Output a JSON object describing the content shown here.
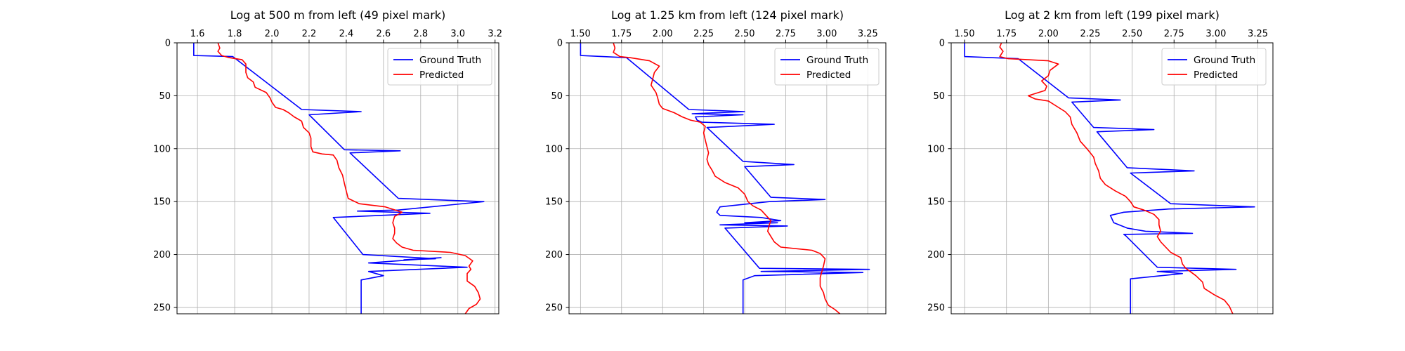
{
  "chart_data": [
    {
      "type": "line",
      "title": "Log at 500 m from left (49 pixel mark)",
      "xlim": [
        1.49,
        3.22
      ],
      "ylim": [
        256,
        0
      ],
      "x_ticks": [
        1.6,
        1.8,
        2.0,
        2.2,
        2.4,
        2.6,
        2.8,
        3.0,
        3.2
      ],
      "x_tick_labels": [
        "1.6",
        "1.8",
        "2.0",
        "2.2",
        "2.4",
        "2.6",
        "2.8",
        "3.0",
        "3.2"
      ],
      "y_ticks": [
        0,
        50,
        100,
        150,
        200,
        250
      ],
      "y_tick_labels": [
        "0",
        "50",
        "100",
        "150",
        "200",
        "250"
      ],
      "grid": true,
      "legend_position": "top-right",
      "series": [
        {
          "name": "Ground Truth",
          "color": "#0000ff",
          "points": [
            [
              1.58,
              0
            ],
            [
              1.58,
              12
            ],
            [
              1.79,
              13
            ],
            [
              2.16,
              63
            ],
            [
              2.48,
              65
            ],
            [
              2.2,
              68
            ],
            [
              2.39,
              101
            ],
            [
              2.69,
              102
            ],
            [
              2.42,
              104
            ],
            [
              2.68,
              147
            ],
            [
              3.14,
              150
            ],
            [
              2.68,
              158
            ],
            [
              2.46,
              159
            ],
            [
              2.85,
              161
            ],
            [
              2.33,
              165
            ],
            [
              2.49,
              200
            ],
            [
              2.88,
              204
            ],
            [
              2.71,
              205
            ],
            [
              2.91,
              203
            ],
            [
              2.52,
              208
            ],
            [
              3.05,
              212
            ],
            [
              2.52,
              216
            ],
            [
              2.6,
              220
            ],
            [
              2.48,
              224
            ],
            [
              2.48,
              256
            ]
          ]
        },
        {
          "name": "Predicted",
          "color": "#ff0000",
          "points": [
            [
              1.71,
              0
            ],
            [
              1.72,
              5
            ],
            [
              1.71,
              8
            ],
            [
              1.73,
              12
            ],
            [
              1.77,
              14
            ],
            [
              1.84,
              16
            ],
            [
              1.86,
              20
            ],
            [
              1.86,
              28
            ],
            [
              1.87,
              33
            ],
            [
              1.9,
              37
            ],
            [
              1.91,
              42
            ],
            [
              1.97,
              47
            ],
            [
              1.99,
              52
            ],
            [
              2.0,
              56
            ],
            [
              2.02,
              61
            ],
            [
              2.06,
              63
            ],
            [
              2.09,
              66
            ],
            [
              2.12,
              70
            ],
            [
              2.16,
              74
            ],
            [
              2.17,
              80
            ],
            [
              2.2,
              85
            ],
            [
              2.21,
              90
            ],
            [
              2.21,
              98
            ],
            [
              2.22,
              103
            ],
            [
              2.27,
              105
            ],
            [
              2.33,
              106
            ],
            [
              2.35,
              111
            ],
            [
              2.36,
              118
            ],
            [
              2.38,
              125
            ],
            [
              2.39,
              133
            ],
            [
              2.4,
              140
            ],
            [
              2.41,
              147
            ],
            [
              2.47,
              152
            ],
            [
              2.61,
              155
            ],
            [
              2.7,
              160
            ],
            [
              2.66,
              164
            ],
            [
              2.65,
              170
            ],
            [
              2.66,
              175
            ],
            [
              2.66,
              180
            ],
            [
              2.65,
              185
            ],
            [
              2.67,
              189
            ],
            [
              2.7,
              193
            ],
            [
              2.76,
              196
            ],
            [
              2.96,
              198
            ],
            [
              3.04,
              201
            ],
            [
              3.08,
              206
            ],
            [
              3.06,
              211
            ],
            [
              3.07,
              214
            ],
            [
              3.05,
              218
            ],
            [
              3.05,
              225
            ],
            [
              3.09,
              230
            ],
            [
              3.11,
              236
            ],
            [
              3.12,
              242
            ],
            [
              3.1,
              247
            ],
            [
              3.06,
              251
            ],
            [
              3.04,
              256
            ]
          ]
        }
      ]
    },
    {
      "type": "line",
      "title": "Log at 1.25 km from left (124 pixel mark)",
      "xlim": [
        1.43,
        3.36
      ],
      "ylim": [
        256,
        0
      ],
      "x_ticks": [
        1.5,
        1.75,
        2.0,
        2.25,
        2.5,
        2.75,
        3.0,
        3.25
      ],
      "x_tick_labels": [
        "1.50",
        "1.75",
        "2.00",
        "2.25",
        "2.50",
        "2.75",
        "3.00",
        "3.25"
      ],
      "y_ticks": [
        0,
        50,
        100,
        150,
        200,
        250
      ],
      "y_tick_labels": [
        "0",
        "50",
        "100",
        "150",
        "200",
        "250"
      ],
      "grid": true,
      "legend_position": "top-right",
      "series": [
        {
          "name": "Ground Truth",
          "color": "#0000ff",
          "points": [
            [
              1.5,
              0
            ],
            [
              1.5,
              12
            ],
            [
              1.78,
              14
            ],
            [
              2.16,
              63
            ],
            [
              2.5,
              65
            ],
            [
              2.18,
              67
            ],
            [
              2.49,
              68
            ],
            [
              2.2,
              70
            ],
            [
              2.21,
              73
            ],
            [
              2.24,
              75
            ],
            [
              2.68,
              77
            ],
            [
              2.27,
              80
            ],
            [
              2.49,
              112
            ],
            [
              2.8,
              115
            ],
            [
              2.5,
              117
            ],
            [
              2.66,
              146
            ],
            [
              2.99,
              148
            ],
            [
              2.65,
              150
            ],
            [
              2.35,
              155
            ],
            [
              2.33,
              160
            ],
            [
              2.35,
              163
            ],
            [
              2.6,
              165
            ],
            [
              2.72,
              168
            ],
            [
              2.5,
              170
            ],
            [
              2.7,
              170
            ],
            [
              2.35,
              172
            ],
            [
              2.76,
              173
            ],
            [
              2.38,
              175
            ],
            [
              2.59,
              213
            ],
            [
              3.26,
              214
            ],
            [
              2.6,
              216
            ],
            [
              3.22,
              217
            ],
            [
              2.56,
              220
            ],
            [
              2.49,
              224
            ],
            [
              2.49,
              256
            ]
          ]
        },
        {
          "name": "Predicted",
          "color": "#ff0000",
          "points": [
            [
              1.7,
              0
            ],
            [
              1.71,
              5
            ],
            [
              1.7,
              9
            ],
            [
              1.74,
              13
            ],
            [
              1.8,
              14
            ],
            [
              1.92,
              17
            ],
            [
              1.98,
              22
            ],
            [
              1.95,
              28
            ],
            [
              1.94,
              34
            ],
            [
              1.93,
              40
            ],
            [
              1.96,
              47
            ],
            [
              1.97,
              52
            ],
            [
              1.98,
              58
            ],
            [
              2.0,
              62
            ],
            [
              2.07,
              66
            ],
            [
              2.12,
              70
            ],
            [
              2.17,
              73
            ],
            [
              2.23,
              75
            ],
            [
              2.26,
              79
            ],
            [
              2.25,
              85
            ],
            [
              2.26,
              92
            ],
            [
              2.27,
              98
            ],
            [
              2.28,
              104
            ],
            [
              2.27,
              110
            ],
            [
              2.28,
              115
            ],
            [
              2.3,
              120
            ],
            [
              2.32,
              126
            ],
            [
              2.38,
              132
            ],
            [
              2.46,
              137
            ],
            [
              2.5,
              143
            ],
            [
              2.52,
              150
            ],
            [
              2.55,
              154
            ],
            [
              2.6,
              158
            ],
            [
              2.63,
              163
            ],
            [
              2.66,
              168
            ],
            [
              2.65,
              172
            ],
            [
              2.64,
              178
            ],
            [
              2.66,
              183
            ],
            [
              2.68,
              188
            ],
            [
              2.72,
              193
            ],
            [
              2.91,
              196
            ],
            [
              2.96,
              199
            ],
            [
              2.99,
              204
            ],
            [
              2.98,
              211
            ],
            [
              2.97,
              216
            ],
            [
              2.96,
              222
            ],
            [
              2.96,
              230
            ],
            [
              2.98,
              236
            ],
            [
              2.99,
              242
            ],
            [
              3.01,
              248
            ],
            [
              3.05,
              252
            ],
            [
              3.08,
              256
            ]
          ]
        }
      ]
    },
    {
      "type": "line",
      "title": "Log at 2 km from left (199 pixel mark)",
      "xlim": [
        1.42,
        3.34
      ],
      "ylim": [
        256,
        0
      ],
      "x_ticks": [
        1.5,
        1.75,
        2.0,
        2.25,
        2.5,
        2.75,
        3.0,
        3.25
      ],
      "x_tick_labels": [
        "1.50",
        "1.75",
        "2.00",
        "2.25",
        "2.50",
        "2.75",
        "3.00",
        "3.25"
      ],
      "y_ticks": [
        0,
        50,
        100,
        150,
        200,
        250
      ],
      "y_tick_labels": [
        "0",
        "50",
        "100",
        "150",
        "200",
        "250"
      ],
      "grid": true,
      "legend_position": "top-right",
      "series": [
        {
          "name": "Ground Truth",
          "color": "#0000ff",
          "points": [
            [
              1.5,
              0
            ],
            [
              1.5,
              13
            ],
            [
              1.82,
              15
            ],
            [
              2.12,
              52
            ],
            [
              2.43,
              54
            ],
            [
              2.14,
              56
            ],
            [
              2.27,
              80
            ],
            [
              2.63,
              82
            ],
            [
              2.29,
              84
            ],
            [
              2.47,
              118
            ],
            [
              2.87,
              121
            ],
            [
              2.49,
              123
            ],
            [
              2.73,
              152
            ],
            [
              3.23,
              155
            ],
            [
              2.72,
              157
            ],
            [
              2.45,
              160
            ],
            [
              2.37,
              163
            ],
            [
              2.39,
              170
            ],
            [
              2.47,
              175
            ],
            [
              2.58,
              178
            ],
            [
              2.86,
              180
            ],
            [
              2.45,
              181
            ],
            [
              2.46,
              182
            ],
            [
              2.65,
              212
            ],
            [
              3.12,
              214
            ],
            [
              2.65,
              216
            ],
            [
              2.8,
              218
            ],
            [
              2.49,
              223
            ],
            [
              2.49,
              256
            ]
          ]
        },
        {
          "name": "Predicted",
          "color": "#ff0000",
          "points": [
            [
              1.72,
              0
            ],
            [
              1.71,
              4
            ],
            [
              1.73,
              8
            ],
            [
              1.71,
              13
            ],
            [
              1.76,
              15
            ],
            [
              2.0,
              17
            ],
            [
              2.06,
              20
            ],
            [
              2.01,
              26
            ],
            [
              2.0,
              31
            ],
            [
              1.96,
              36
            ],
            [
              1.99,
              41
            ],
            [
              1.98,
              45
            ],
            [
              1.88,
              50
            ],
            [
              1.92,
              53
            ],
            [
              2.0,
              55
            ],
            [
              2.05,
              60
            ],
            [
              2.1,
              65
            ],
            [
              2.13,
              70
            ],
            [
              2.14,
              77
            ],
            [
              2.17,
              85
            ],
            [
              2.19,
              93
            ],
            [
              2.23,
              100
            ],
            [
              2.27,
              108
            ],
            [
              2.28,
              114
            ],
            [
              2.3,
              121
            ],
            [
              2.31,
              128
            ],
            [
              2.34,
              134
            ],
            [
              2.4,
              140
            ],
            [
              2.46,
              145
            ],
            [
              2.49,
              150
            ],
            [
              2.51,
              155
            ],
            [
              2.57,
              158
            ],
            [
              2.63,
              162
            ],
            [
              2.66,
              167
            ],
            [
              2.66,
              172
            ],
            [
              2.67,
              178
            ],
            [
              2.65,
              183
            ],
            [
              2.67,
              188
            ],
            [
              2.7,
              193
            ],
            [
              2.73,
              198
            ],
            [
              2.79,
              203
            ],
            [
              2.8,
              209
            ],
            [
              2.82,
              213
            ],
            [
              2.88,
              220
            ],
            [
              2.92,
              226
            ],
            [
              2.93,
              232
            ],
            [
              2.99,
              238
            ],
            [
              3.05,
              243
            ],
            [
              3.08,
              249
            ],
            [
              3.1,
              256
            ]
          ]
        }
      ]
    }
  ]
}
